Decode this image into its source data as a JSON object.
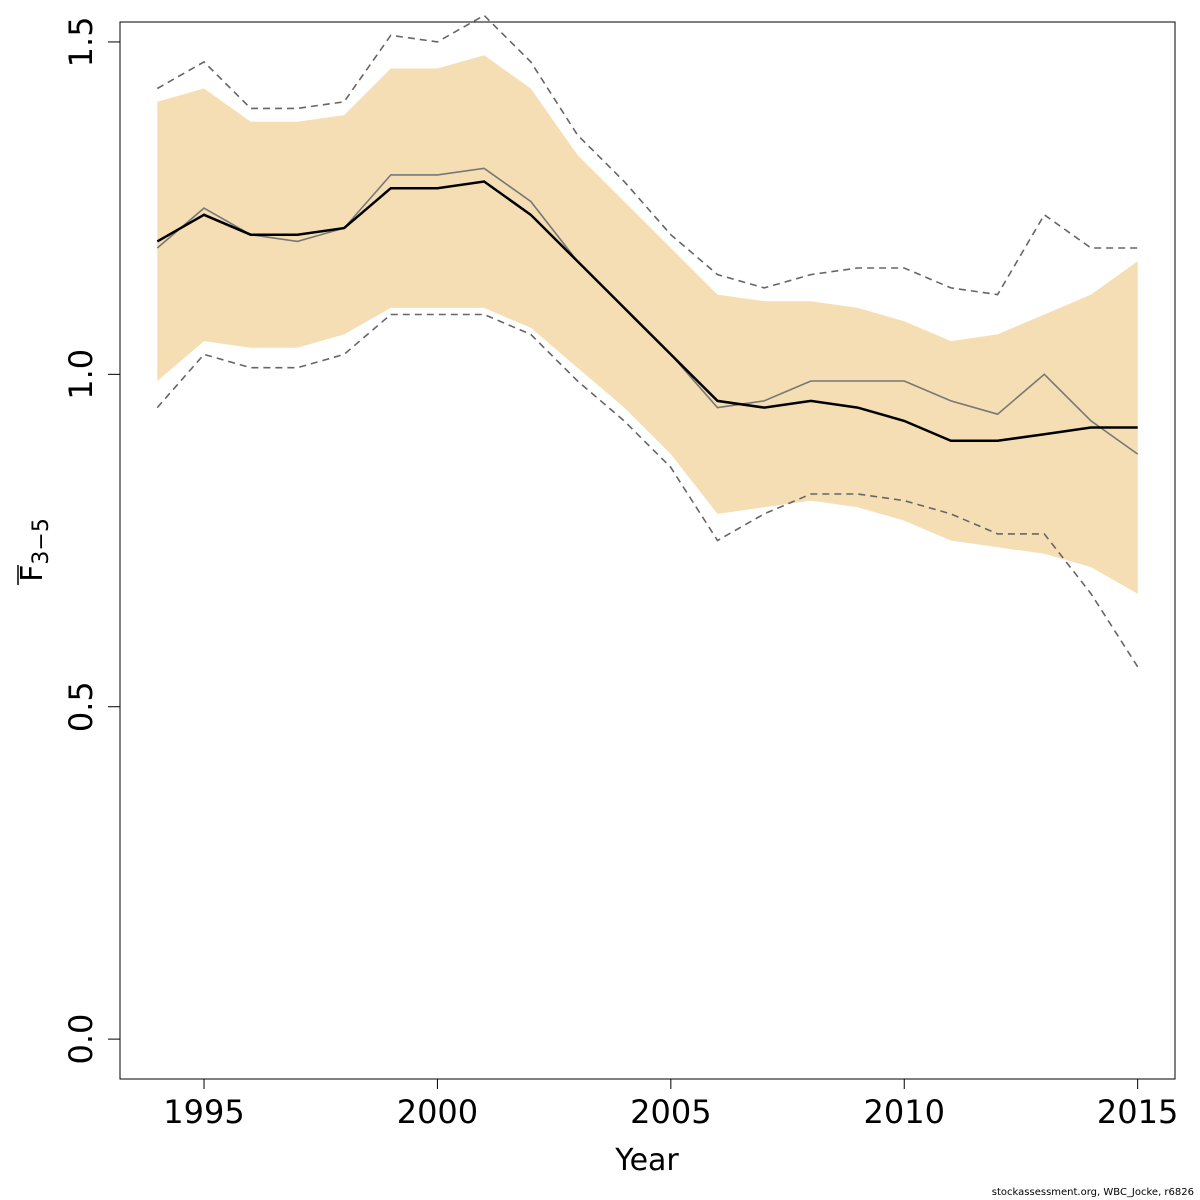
{
  "chart_data": {
    "type": "line",
    "xlabel": "Year",
    "ylabel_main": "F",
    "ylabel_sub": "3−5",
    "xlim": [
      1993.2,
      2015.8
    ],
    "ylim": [
      -0.06,
      1.53
    ],
    "x_ticks": [
      1995,
      2000,
      2005,
      2010,
      2015
    ],
    "y_ticks": [
      0.0,
      0.5,
      1.0,
      1.5
    ],
    "y_tick_labels": [
      "0.0",
      "0.5",
      "1.0",
      "1.5"
    ],
    "x": [
      1994,
      1995,
      1996,
      1997,
      1998,
      1999,
      2000,
      2001,
      2002,
      2003,
      2004,
      2005,
      2006,
      2007,
      2008,
      2009,
      2010,
      2011,
      2012,
      2013,
      2014,
      2015
    ],
    "series": [
      {
        "role": "confidence-band",
        "color": "#f5deb3",
        "upper": [
          1.41,
          1.43,
          1.38,
          1.38,
          1.39,
          1.46,
          1.46,
          1.48,
          1.43,
          1.33,
          1.26,
          1.19,
          1.12,
          1.11,
          1.11,
          1.1,
          1.08,
          1.05,
          1.06,
          1.09,
          1.12,
          1.17
        ],
        "lower": [
          0.99,
          1.05,
          1.04,
          1.04,
          1.06,
          1.1,
          1.1,
          1.1,
          1.07,
          1.01,
          0.95,
          0.88,
          0.79,
          0.8,
          0.81,
          0.8,
          0.78,
          0.75,
          0.74,
          0.73,
          0.71,
          0.67
        ]
      },
      {
        "role": "upper-dashed",
        "color": "#666666",
        "values": [
          1.43,
          1.47,
          1.4,
          1.4,
          1.41,
          1.51,
          1.5,
          1.54,
          1.47,
          1.36,
          1.29,
          1.21,
          1.15,
          1.13,
          1.15,
          1.16,
          1.16,
          1.13,
          1.12,
          1.24,
          1.19,
          1.19
        ]
      },
      {
        "role": "lower-dashed",
        "color": "#666666",
        "values": [
          0.95,
          1.03,
          1.01,
          1.01,
          1.03,
          1.09,
          1.09,
          1.09,
          1.06,
          0.99,
          0.93,
          0.86,
          0.75,
          0.79,
          0.82,
          0.82,
          0.81,
          0.79,
          0.76,
          0.76,
          0.67,
          0.56
        ]
      },
      {
        "role": "grey-line",
        "color": "#777777",
        "values": [
          1.19,
          1.25,
          1.21,
          1.2,
          1.22,
          1.3,
          1.3,
          1.31,
          1.26,
          1.17,
          1.1,
          1.03,
          0.95,
          0.96,
          0.99,
          0.99,
          0.99,
          0.96,
          0.94,
          1.0,
          0.93,
          0.88
        ]
      },
      {
        "role": "main-line",
        "color": "#000000",
        "values": [
          1.2,
          1.24,
          1.21,
          1.21,
          1.22,
          1.28,
          1.28,
          1.29,
          1.24,
          1.17,
          1.1,
          1.03,
          0.96,
          0.95,
          0.96,
          0.95,
          0.93,
          0.9,
          0.9,
          0.91,
          0.92,
          0.92
        ]
      }
    ]
  },
  "footer": {
    "credit": "stockassessment.org, WBC_Jocke, r6826"
  }
}
